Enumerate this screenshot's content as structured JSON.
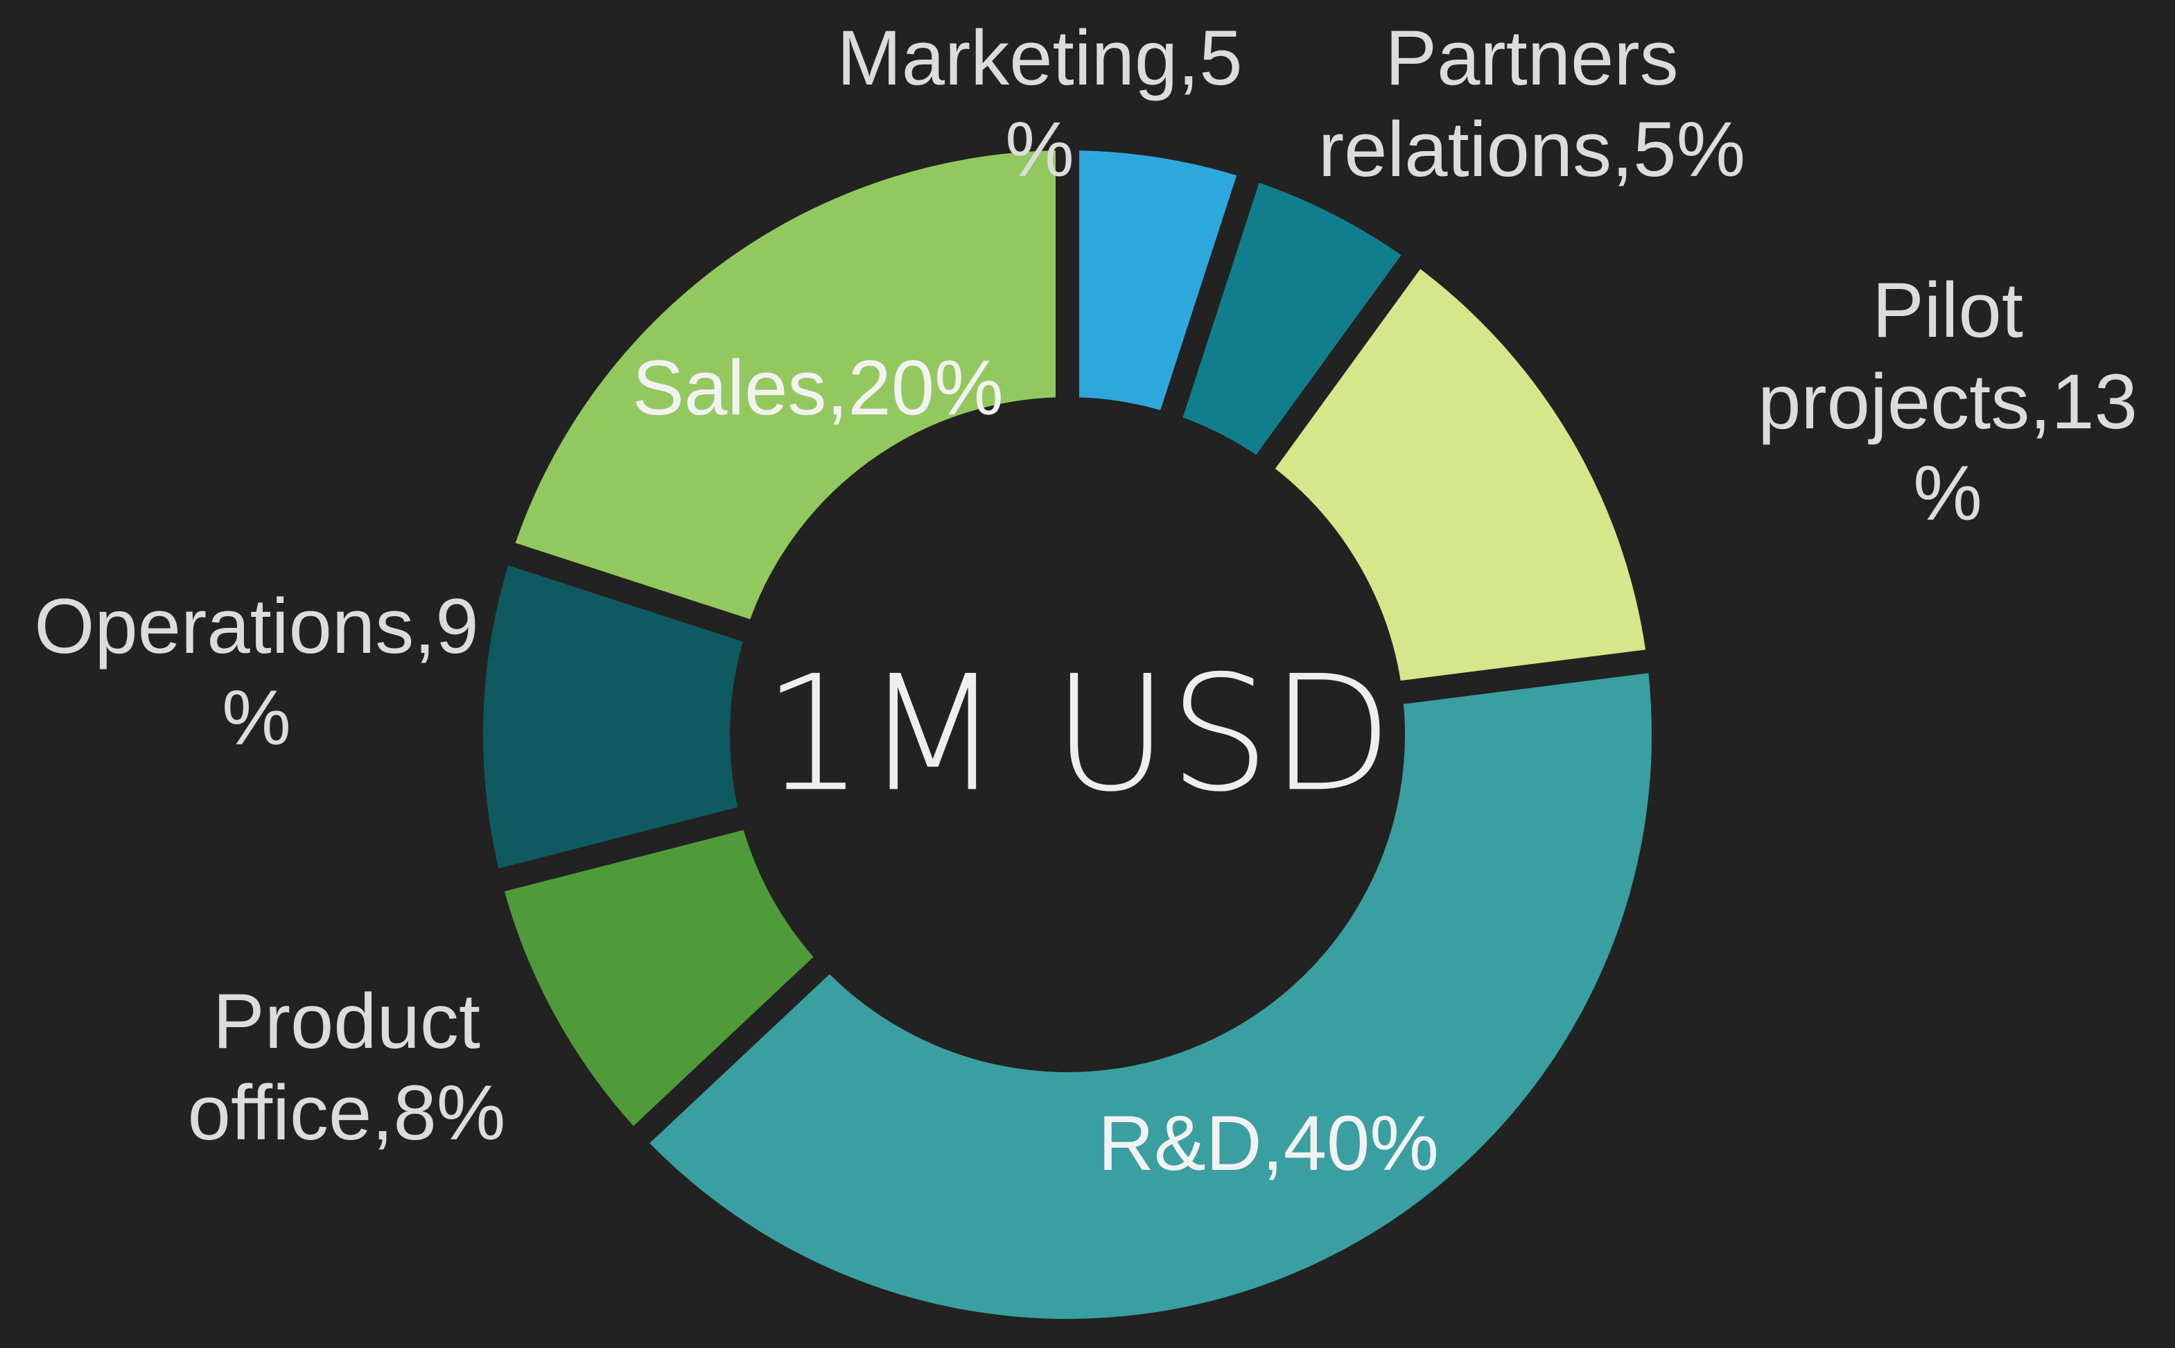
{
  "chart_data": {
    "type": "donut",
    "center_label": "1M USD",
    "labels": [
      "Marketing,5%",
      "Partners relations,5%",
      "Pilot projects,13%",
      "R&D,40%",
      "Product office,8%",
      "Operations,9%",
      "Sales,20%"
    ],
    "values": [
      5,
      5,
      13,
      40,
      8,
      9,
      20
    ],
    "colors": [
      "#2ea8dc",
      "#117e8e",
      "#d6e68a",
      "#3a9fa0",
      "#4f9b3a",
      "#0f5a60",
      "#93c85e"
    ]
  }
}
